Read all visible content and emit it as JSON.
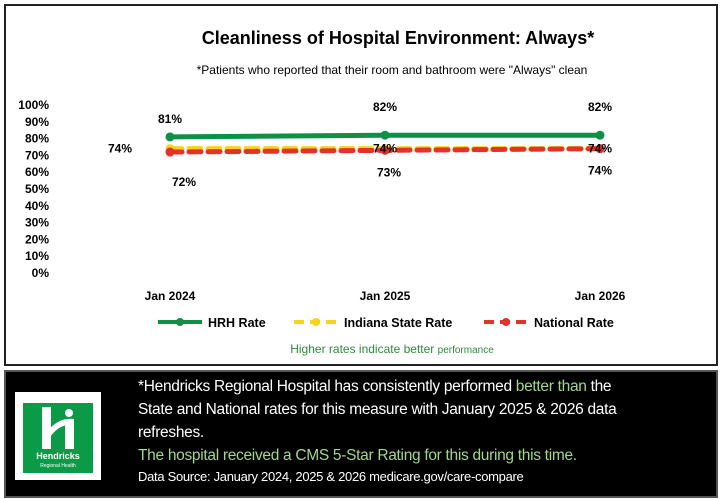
{
  "chart_data": {
    "type": "line",
    "title": "Cleanliness of Hospital Environment: Always*",
    "subtitle": "*Patients who reported that their room and bathroom were \"Always\" clean",
    "categories": [
      "Jan 2024",
      "Jan 2025",
      "Jan 2026"
    ],
    "yticks": [
      "0%",
      "10%",
      "20%",
      "30%",
      "40%",
      "50%",
      "60%",
      "70%",
      "80%",
      "90%",
      "100%"
    ],
    "ylim": [
      0,
      100
    ],
    "grid": false,
    "legend_position": "bottom",
    "series": [
      {
        "name": "HRH Rate",
        "values": [
          81,
          82,
          82
        ],
        "labels": [
          "81%",
          "82%",
          "82%"
        ],
        "color": "#0e9146",
        "dash": false
      },
      {
        "name": "Indiana State Rate",
        "values": [
          74,
          74,
          74
        ],
        "labels": [
          "74%",
          "74%",
          "74%"
        ],
        "color": "#f7d31a",
        "dash": true
      },
      {
        "name": "National Rate",
        "values": [
          72,
          73,
          74
        ],
        "labels": [
          "72%",
          "73%",
          "74%"
        ],
        "color": "#e4322b",
        "dash": true
      }
    ],
    "note": "Higher rates indicate better",
    "note_small": "performance"
  },
  "panel": {
    "logo_name": "Hendricks",
    "logo_sub": "Regional Health",
    "line1a": "*Hendricks Regional Hospital has consistently performed ",
    "line1b": "better than",
    "line1c": " the",
    "line2": "State and National rates for this measure with January 2025 & 2026 data",
    "line3": "refreshes.",
    "line4": "The hospital received a CMS 5-Star Rating for this during this time.",
    "line5": "Data Source: January 2024, 2025 & 2026 medicare.gov/care-compare"
  }
}
